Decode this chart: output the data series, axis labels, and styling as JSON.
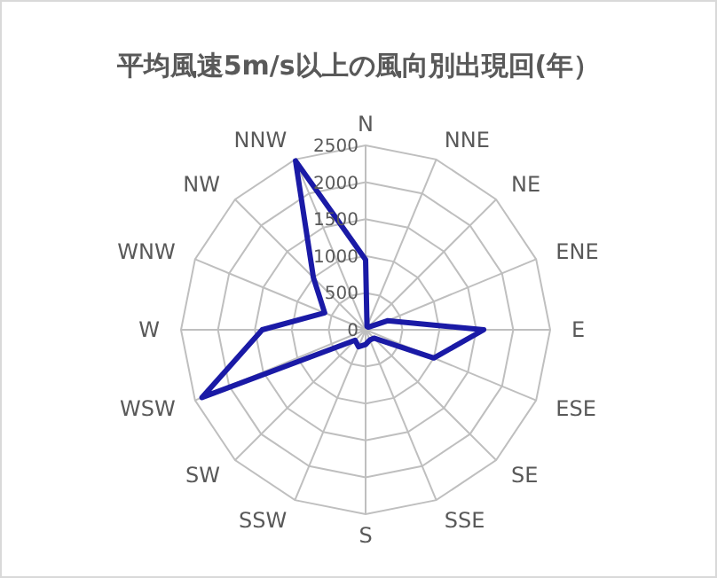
{
  "chart_data": {
    "type": "radar",
    "title": "平均風速5m/s以上の風向別出現回(年）",
    "categories": [
      "N",
      "NNE",
      "NE",
      "ENE",
      "E",
      "ESE",
      "SE",
      "SSE",
      "S",
      "SSW",
      "SW",
      "WSW",
      "W",
      "WNW",
      "NW",
      "NNW"
    ],
    "series": [
      {
        "color": "#1a1aa6",
        "values": [
          950,
          50,
          50,
          320,
          1600,
          1000,
          160,
          150,
          200,
          250,
          200,
          2400,
          1400,
          600,
          1000,
          2480
        ]
      }
    ],
    "ylim": [
      0,
      2500
    ],
    "yticks": [
      0,
      500,
      1000,
      1500,
      2000,
      2500
    ],
    "grid": true,
    "marker": "none",
    "line_style": "solid"
  }
}
